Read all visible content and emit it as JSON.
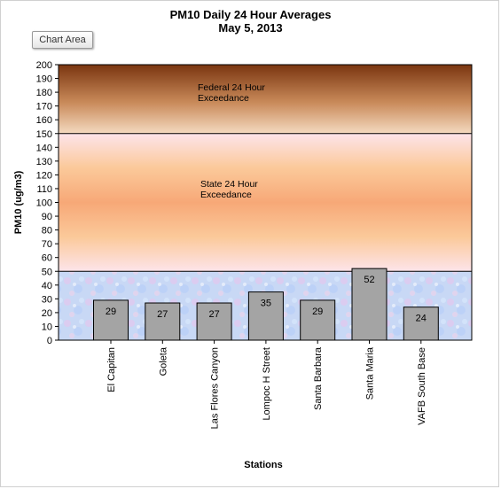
{
  "window": {
    "chart_area_button": "Chart Area"
  },
  "colors": {
    "bar_fill": "#a4a4a4",
    "bar_stroke": "#000000",
    "federal_band_top": "#7a3510",
    "federal_band_bottom": "#f4dac0",
    "state_band_mid": "#f7a877",
    "state_band_edge": "#fde4ea",
    "normal_band": "#c6d6f4"
  },
  "chart_data": {
    "type": "bar",
    "title": "PM10 Daily 24 Hour Averages",
    "subtitle": "May 5, 2013",
    "xlabel": "Stations",
    "ylabel": "PM10 (ug/m3)",
    "ylim": [
      0,
      200
    ],
    "ytick_step": 10,
    "grid": false,
    "legend": "none",
    "categories": [
      "El Capitan",
      "Goleta",
      "Las Flores Canyon",
      "Lompoc H Street",
      "Santa Barbara",
      "Santa Maria",
      "VAFB South Base"
    ],
    "values": [
      29,
      27,
      27,
      35,
      29,
      52,
      24
    ],
    "bands": [
      {
        "from": 0,
        "to": 50,
        "label": ""
      },
      {
        "from": 50,
        "to": 150,
        "label_line1": "State 24 Hour",
        "label_line2": "Exceedance"
      },
      {
        "from": 150,
        "to": 200,
        "label_line1": "Federal 24 Hour",
        "label_line2": "Exceedance"
      }
    ]
  }
}
